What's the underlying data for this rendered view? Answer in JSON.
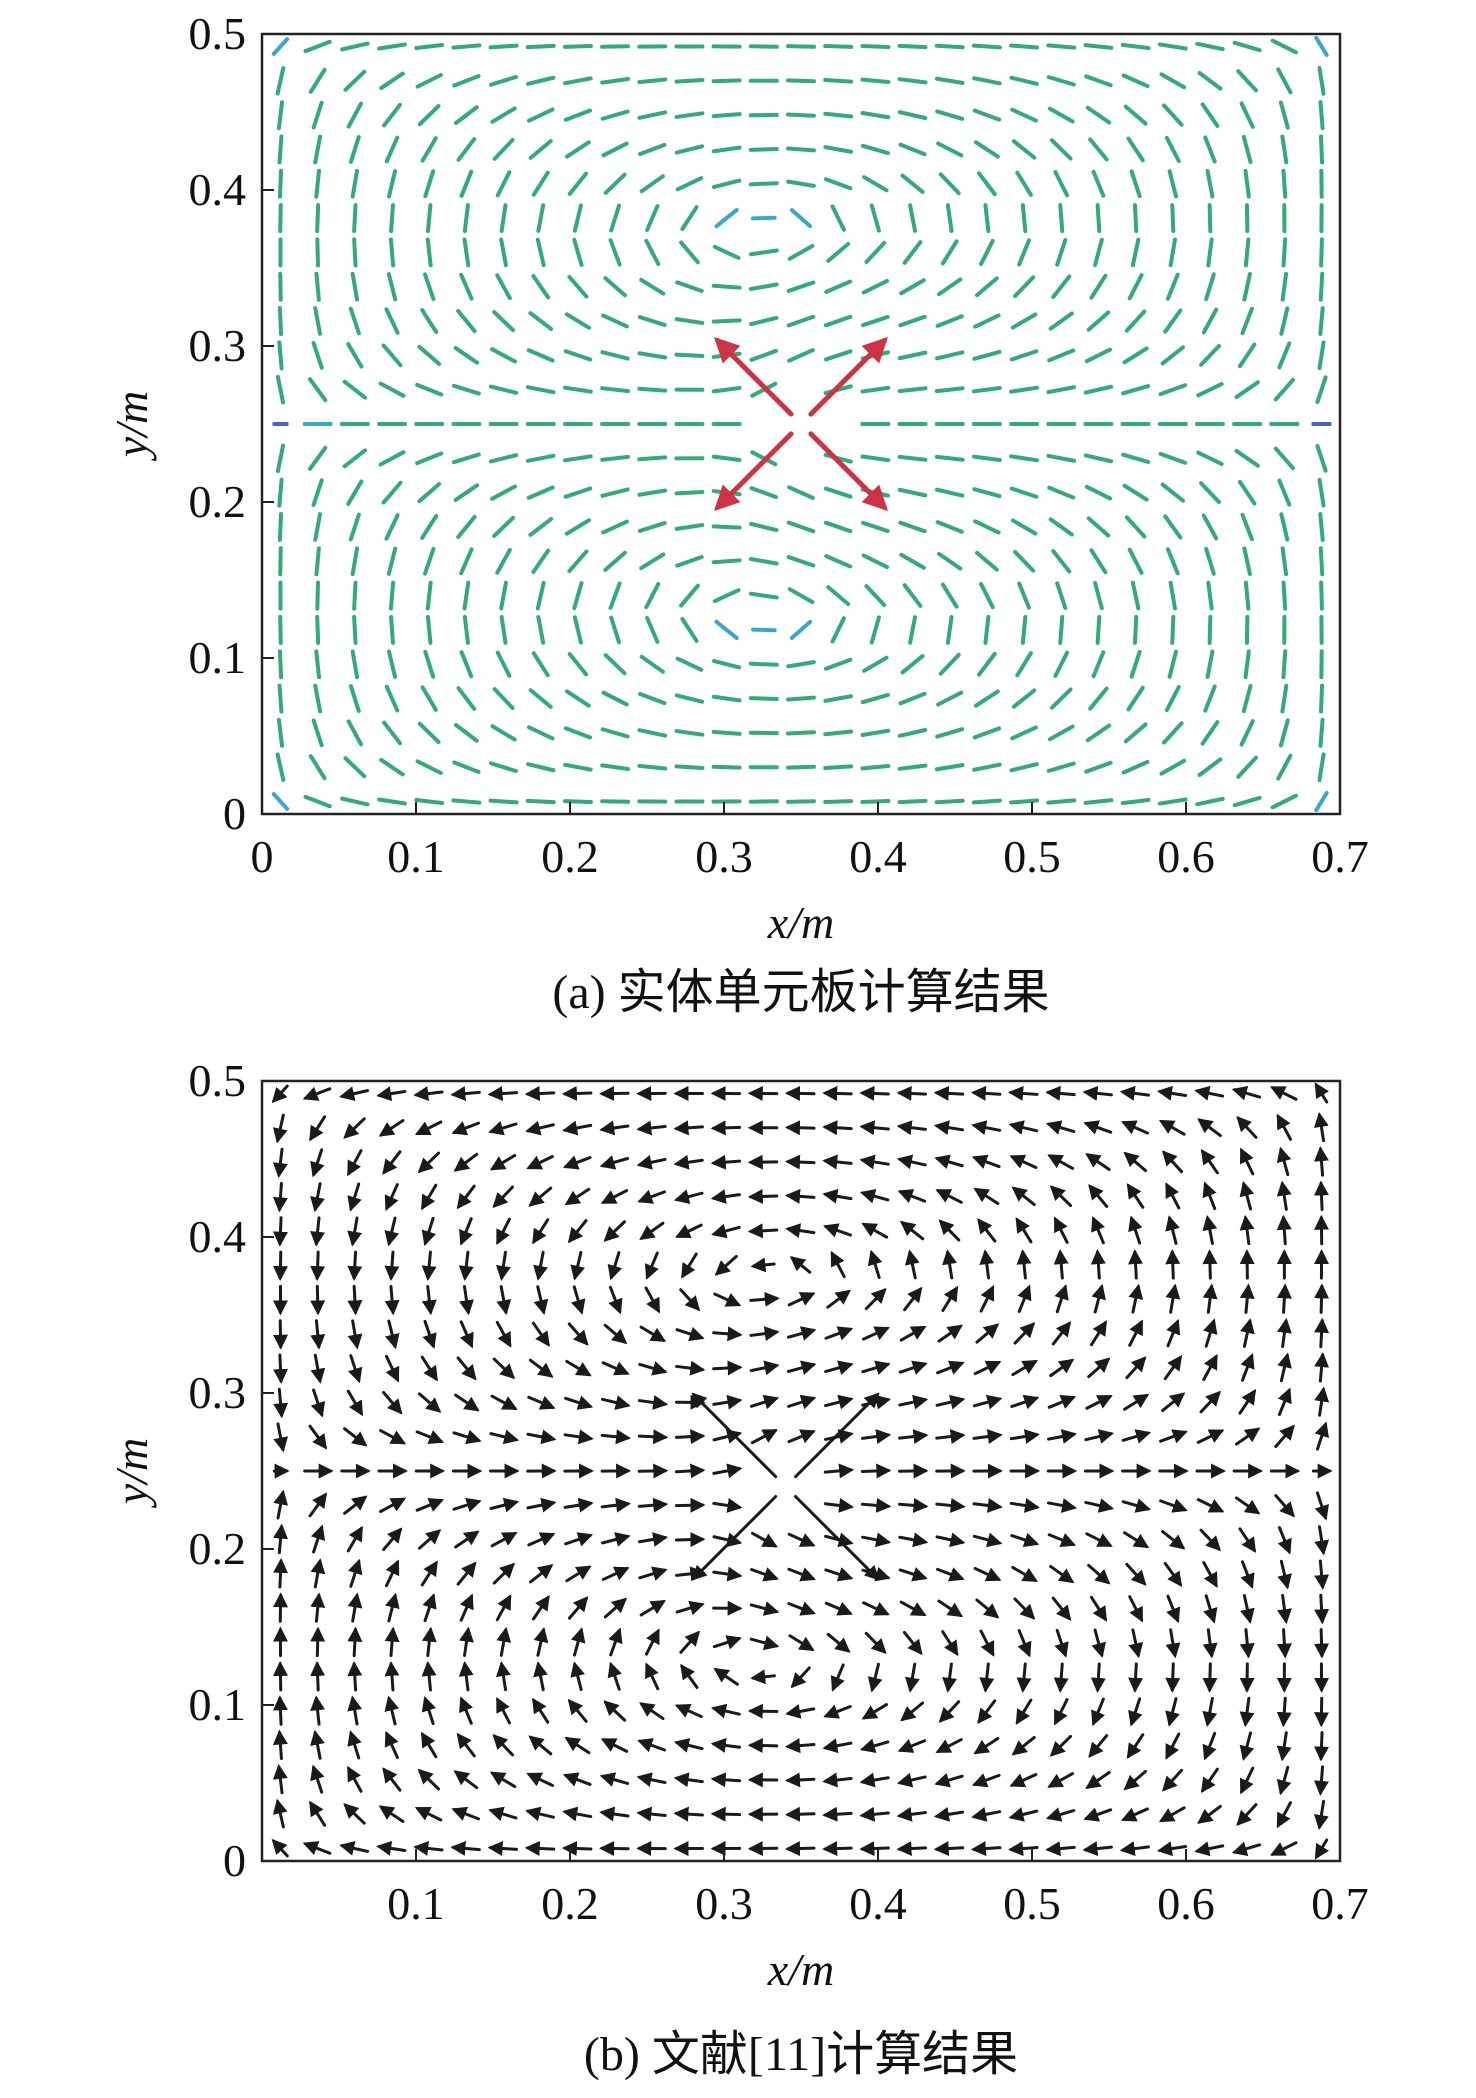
{
  "figure": {
    "caption_a": "(a) 实体单元板计算结果",
    "caption_b": "(b) 文献[11]计算结果"
  },
  "chart_data": [
    {
      "type": "quiver",
      "panel": "a",
      "caption": "(a) 实体单元板计算结果",
      "xlabel": "x/m",
      "ylabel": "y/m",
      "xlim": [
        0,
        0.7
      ],
      "ylim": [
        0,
        0.5
      ],
      "xticks": [
        "0",
        "0.1",
        "0.2",
        "0.3",
        "0.4",
        "0.5",
        "0.6",
        "0.7"
      ],
      "yticks": [
        "0",
        "0.1",
        "0.2",
        "0.3",
        "0.4",
        "0.5"
      ],
      "grid": false,
      "source_point": [
        0.35,
        0.25
      ],
      "field": "two symmetric vortex cells about y = 0.25 driven by outward radial flow from the source point; strongest (red) vectors on the diagonals next to the source, medium (green/cyan) near it, weak (blue) far away",
      "colors": {
        "strong": "#cc3344",
        "medium": "#33aa77",
        "weak": "#4a5ed0",
        "light": "#9aa7e8"
      }
    },
    {
      "type": "quiver",
      "panel": "b",
      "caption": "(b) 文献[11]计算结果",
      "xlabel": "x/m",
      "ylabel": "y/m",
      "xlim": [
        0,
        0.7
      ],
      "ylim": [
        0,
        0.5
      ],
      "xticks": [
        "0.1",
        "0.2",
        "0.3",
        "0.4",
        "0.5",
        "0.6",
        "0.7"
      ],
      "yticks": [
        "0",
        "0.1",
        "0.2",
        "0.3",
        "0.4",
        "0.5"
      ],
      "grid": false,
      "source_point": [
        0.34,
        0.24
      ],
      "field": "same double-vortex pattern drawn with black arrows; long diagonal arrows radiating from the source point",
      "colors": {
        "arrow": "#1a1a1a"
      }
    }
  ]
}
